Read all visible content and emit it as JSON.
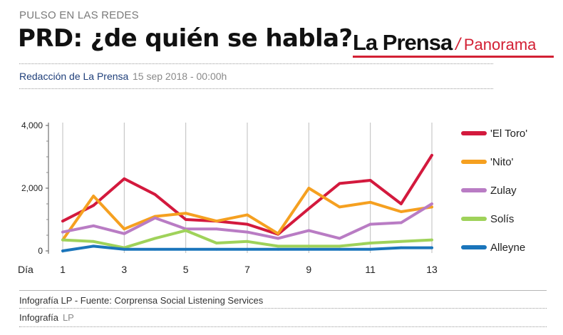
{
  "article": {
    "kicker": "PULSO EN LAS REDES",
    "headline": "PRD: ¿de quién se habla?",
    "brand_name": "La Prensa",
    "brand_sep": "/",
    "brand_section": "Panorama",
    "byline": "Redacción de La Prensa",
    "date": "15 sep 2018 - 00:00h"
  },
  "footer": {
    "source": "Infografía LP  - Fuente: Corprensa Social Listening Services",
    "credit_label": "Infografía",
    "credit_value": "LP"
  },
  "colors": {
    "accent": "#d32034"
  },
  "chart_data": {
    "type": "line",
    "title": "",
    "xlabel": "Día",
    "ylabel": "",
    "x": [
      1,
      2,
      3,
      4,
      5,
      6,
      7,
      8,
      9,
      10,
      11,
      12,
      13
    ],
    "xticks": [
      "1",
      "3",
      "5",
      "7",
      "9",
      "11",
      "13"
    ],
    "yticks": [
      "0",
      "2,000",
      "4,000"
    ],
    "ylim": [
      0,
      4000
    ],
    "grid": "vertical",
    "legend": "right",
    "series": [
      {
        "name": "'El Toro'",
        "color": "#d3193d",
        "values": [
          950,
          1450,
          2300,
          1800,
          1000,
          950,
          850,
          530,
          1350,
          2150,
          2250,
          1500,
          3050
        ]
      },
      {
        "name": "'Nito'",
        "color": "#f5a020",
        "values": [
          350,
          1750,
          700,
          1100,
          1200,
          950,
          1150,
          550,
          2000,
          1400,
          1550,
          1250,
          1400
        ]
      },
      {
        "name": "Zulay",
        "color": "#b97cc4",
        "values": [
          600,
          800,
          550,
          1050,
          700,
          700,
          600,
          400,
          650,
          400,
          850,
          900,
          1500
        ]
      },
      {
        "name": "Solís",
        "color": "#9fd25a",
        "values": [
          350,
          300,
          100,
          400,
          650,
          250,
          300,
          150,
          150,
          150,
          250,
          300,
          350
        ]
      },
      {
        "name": "Alleyne",
        "color": "#1a75bb",
        "values": [
          0,
          150,
          50,
          50,
          50,
          50,
          50,
          50,
          50,
          50,
          50,
          100,
          100
        ]
      }
    ]
  }
}
